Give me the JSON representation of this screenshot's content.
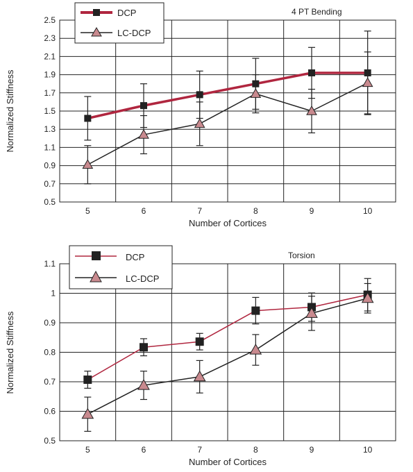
{
  "chart_data": [
    {
      "type": "line",
      "title": "4 PT Bending",
      "xlabel": "Number of Cortices",
      "ylabel": "Normalized Stiffness",
      "categories": [
        "5",
        "6",
        "7",
        "8",
        "9",
        "10"
      ],
      "ylim": [
        0.5,
        2.5
      ],
      "yticks": [
        "0.5",
        "0.7",
        "0.9",
        "1.1",
        "1.3",
        "1.5",
        "1.7",
        "1.9",
        "2.1",
        "2.3",
        "2.5"
      ],
      "grid": true,
      "legend": "top-left",
      "series": [
        {
          "name": "DCP",
          "marker": "square",
          "color": "#b0263f",
          "values": [
            1.42,
            1.56,
            1.68,
            1.8,
            1.92,
            1.92
          ],
          "error": [
            0.24,
            0.24,
            0.26,
            0.28,
            0.28,
            0.46
          ]
        },
        {
          "name": "LC-DCP",
          "marker": "triangle",
          "color": "#222222",
          "values": [
            0.91,
            1.24,
            1.36,
            1.69,
            1.5,
            1.81
          ],
          "error": [
            0.21,
            0.21,
            0.24,
            0.21,
            0.24,
            0.34
          ]
        }
      ]
    },
    {
      "type": "line",
      "title": "Torsion",
      "xlabel": "Number of Cortices",
      "ylabel": "Normalized Stiffness",
      "categories": [
        "5",
        "6",
        "7",
        "8",
        "9",
        "10"
      ],
      "ylim": [
        0.5,
        1.1
      ],
      "yticks": [
        "0.5",
        "0.6",
        "0.7",
        "0.8",
        "0.9",
        "1",
        "1.1"
      ],
      "grid": true,
      "legend": "top-left",
      "series": [
        {
          "name": "DCP",
          "marker": "square",
          "color": "#b0263f",
          "values": [
            0.707,
            0.817,
            0.836,
            0.941,
            0.953,
            0.995
          ],
          "error": [
            0.029,
            0.029,
            0.028,
            0.045,
            0.048,
            0.055
          ]
        },
        {
          "name": "LC-DCP",
          "marker": "triangle",
          "color": "#222222",
          "values": [
            0.59,
            0.688,
            0.717,
            0.808,
            0.932,
            0.983
          ],
          "error": [
            0.058,
            0.048,
            0.055,
            0.052,
            0.058,
            0.05
          ]
        }
      ]
    }
  ]
}
